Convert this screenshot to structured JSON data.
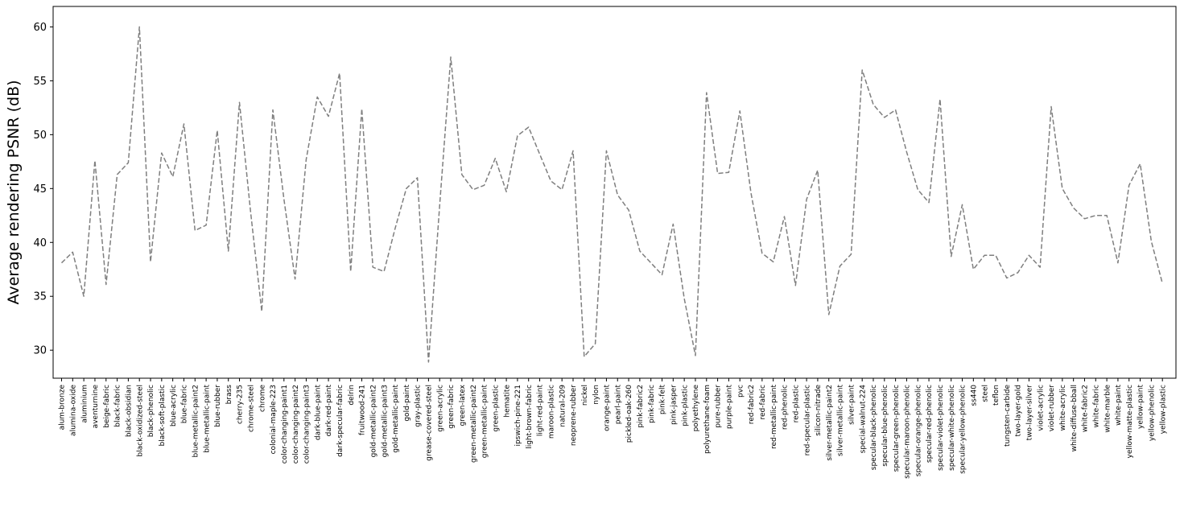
{
  "chart_data": {
    "type": "line",
    "title": "",
    "xlabel": "",
    "ylabel": "Average rendering PSNR (dB)",
    "legend": "none",
    "grid": false,
    "line_color": "#7f7f7f",
    "line_style": "dashed",
    "ylim": [
      27.4,
      61.9
    ],
    "yticks": [
      30,
      35,
      40,
      45,
      50,
      55,
      60
    ],
    "categories": [
      "alum-bronze",
      "alumina-oxide",
      "aluminium",
      "aventurnine",
      "beige-fabric",
      "black-fabric",
      "black-obsidian",
      "black-oxidized-steel",
      "black-phenolic",
      "black-soft-plastic",
      "blue-acrylic",
      "blue-fabric",
      "blue-metallic-paint2",
      "blue-metallic-paint",
      "blue-rubber",
      "brass",
      "cherry-235",
      "chrome-steel",
      "chrome",
      "colonial-maple-223",
      "color-changing-paint1",
      "color-changing-paint2",
      "color-changing-paint3",
      "dark-blue-paint",
      "dark-red-paint",
      "dark-specular-fabric",
      "delrin",
      "fruitwood-241",
      "gold-metallic-paint2",
      "gold-metallic-paint3",
      "gold-metallic-paint",
      "gold-paint",
      "gray-plastic",
      "grease-covered-steel",
      "green-acrylic",
      "green-fabric",
      "green-latex",
      "green-metallic-paint2",
      "green-metallic-paint",
      "green-plastic",
      "hematite",
      "ipswich-pine-221",
      "light-brown-fabric",
      "light-red-paint",
      "maroon-plastic",
      "natural-209",
      "neoprene-rubber",
      "nickel",
      "nylon",
      "orange-paint",
      "pearl-paint",
      "pickled-oak-260",
      "pink-fabric2",
      "pink-fabric",
      "pink-felt",
      "pink-jasper",
      "pink-plastic",
      "polyethylene",
      "polyurethane-foam",
      "pure-rubber",
      "purple-paint",
      "pvc",
      "red-fabric2",
      "red-fabric",
      "red-metallic-paint",
      "red-phenolic",
      "red-plastic",
      "red-specular-plastic",
      "silicon-nitrade",
      "silver-metallic-paint2",
      "silver-metallic-paint",
      "silver-paint",
      "special-walnut-224",
      "specular-black-phenolic",
      "specular-blue-phenolic",
      "specular-green-phenolic",
      "specular-maroon-phenolic",
      "specular-orange-phenolic",
      "specular-red-phenolic",
      "specular-violet-phenolic",
      "specular-white-phenolic",
      "specular-yellow-phenolic",
      "ss440",
      "steel",
      "teflon",
      "tungsten-carbide",
      "two-layer-gold",
      "two-layer-silver",
      "violet-acrylic",
      "violet-rubber",
      "white-acrylic",
      "white-diffuse-bball",
      "white-fabric2",
      "white-fabric",
      "white-marble",
      "white-paint",
      "yellow-matte-plastic",
      "yellow-paint",
      "yellow-phenolic",
      "yellow-plastic"
    ],
    "values": [
      38.1,
      39.1,
      35.0,
      47.6,
      36.1,
      46.3,
      47.4,
      60.0,
      38.2,
      48.3,
      46.1,
      51.0,
      41.1,
      41.6,
      50.4,
      39.2,
      53.0,
      42.8,
      33.6,
      52.3,
      44.0,
      36.6,
      47.7,
      53.5,
      51.7,
      55.7,
      37.3,
      52.4,
      37.7,
      37.3,
      41.3,
      45.0,
      46.0,
      28.9,
      43.4,
      57.2,
      46.3,
      44.9,
      45.3,
      47.8,
      44.7,
      49.9,
      50.7,
      48.2,
      45.7,
      44.9,
      48.5,
      29.4,
      30.6,
      48.5,
      44.4,
      43.0,
      39.2,
      38.1,
      37.0,
      41.7,
      34.8,
      29.5,
      53.9,
      46.4,
      46.5,
      52.2,
      44.6,
      39.0,
      38.2,
      42.4,
      36.0,
      44.0,
      46.7,
      33.3,
      37.8,
      38.9,
      56.0,
      52.8,
      51.6,
      52.3,
      48.4,
      44.9,
      43.7,
      53.3,
      38.7,
      43.5,
      37.5,
      38.8,
      38.8,
      36.7,
      37.2,
      38.8,
      37.7,
      52.6,
      45.0,
      43.2,
      42.2,
      42.5,
      42.5,
      38.1,
      45.3,
      47.3,
      40.1,
      36.2
    ]
  }
}
